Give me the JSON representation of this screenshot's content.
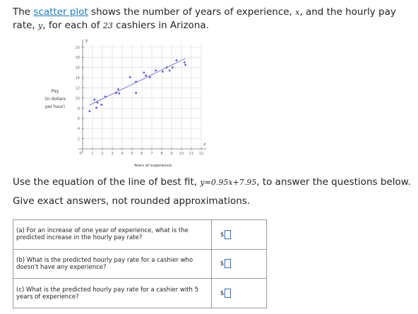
{
  "intro": {
    "parts": [
      "The ",
      "scatter plot",
      " shows the number of years of experience, ",
      "x",
      ", and the hourly pay rate, ",
      "y",
      ", for each of ",
      "23",
      " cashiers in Arizona."
    ]
  },
  "chart_data": {
    "type": "scatter",
    "x_label": "Years of experience",
    "y_label": [
      "Pay",
      "(in dollars",
      "per hour)"
    ],
    "x_axis_letter": "x",
    "y_axis_letter": "y",
    "series": [
      {
        "color": "#5b5bd6",
        "x": [
          0.7,
          1.2,
          1.4,
          1.5,
          1.9,
          2.3,
          3.4,
          3.6,
          3.7,
          4.8,
          5.4,
          5.4,
          6.2,
          6.4,
          6.8,
          7.4,
          8.1,
          8.5,
          8.8,
          9.1,
          9.5,
          10.3,
          10.4
        ],
        "values": [
          7.4,
          9.7,
          8.1,
          9.1,
          8.7,
          10.3,
          11.0,
          11.7,
          10.9,
          14.1,
          13.2,
          11.0,
          15.0,
          14.4,
          14.1,
          15.4,
          15.2,
          16.0,
          15.4,
          16.0,
          17.4,
          17.0,
          16.5
        ]
      }
    ],
    "fit_line": {
      "color": "#7b7be0",
      "x": [
        0.7,
        10.4
      ],
      "values": [
        8.6,
        17.8
      ]
    },
    "xlim": [
      0,
      12.5
    ],
    "ylim": [
      0,
      21.5
    ],
    "xticks": [
      0,
      1,
      2,
      3,
      4,
      5,
      6,
      7,
      8,
      9,
      10,
      11,
      12
    ],
    "yticks": [
      2,
      4,
      6,
      8,
      10,
      12,
      14,
      16,
      18,
      20
    ],
    "grid": true
  },
  "equation_line": {
    "parts": [
      "Use the equation of the line of best fit, ",
      "y=0.95x+7.95",
      ", to answer the questions below."
    ]
  },
  "instruction": "Give exact answers, not rounded approximations.",
  "table": {
    "rows": [
      [
        "(a) For an increase of one year of experience, what is the predicted increase in the hourly pay rate?",
        "$"
      ],
      [
        "(b) What is the predicted hourly pay rate for a cashier who doesn't have any experience?",
        "$"
      ],
      [
        "(c) What is the predicted hourly pay rate for a cashier with 5 years of experience?",
        "$"
      ]
    ]
  }
}
